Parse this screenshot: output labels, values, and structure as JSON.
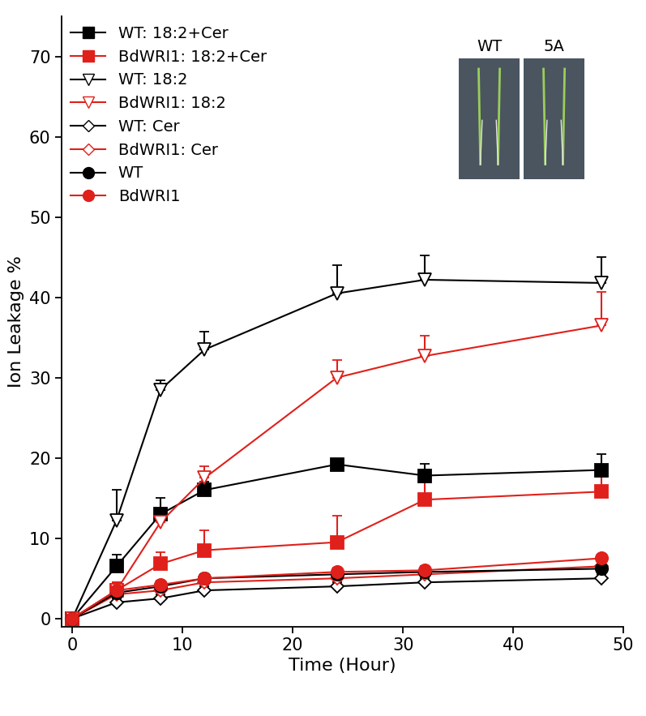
{
  "chart_data": {
    "type": "line",
    "x_label": "Time (Hour)",
    "y_label": "Ion Leakage %",
    "x": [
      0,
      4,
      8,
      12,
      24,
      32,
      48
    ],
    "xlim": [
      -1,
      50
    ],
    "xticks": [
      0,
      10,
      20,
      30,
      40,
      50
    ],
    "ylim": [
      -1,
      75
    ],
    "yticks": [
      0,
      10,
      20,
      30,
      40,
      50,
      60,
      70
    ],
    "legend": "upper left",
    "annotations": [
      "WT",
      "5A"
    ],
    "series": [
      {
        "name": "WT: 18:2+Cer",
        "color": "#000000",
        "marker": "square",
        "values": [
          0,
          6.5,
          13,
          16,
          19.2,
          17.8,
          18.5
        ],
        "errors": [
          0,
          1.5,
          2,
          1,
          0.5,
          1.5,
          2
        ]
      },
      {
        "name": "BdWRI1: 18:2+Cer",
        "color": "#e0201b",
        "marker": "square",
        "values": [
          0,
          3.5,
          6.8,
          8.5,
          9.5,
          14.8,
          15.8
        ],
        "errors": [
          0,
          1,
          1.5,
          2.5,
          3.3,
          3.8,
          3.2
        ]
      },
      {
        "name": "WT: 18:2",
        "color": "#000000",
        "marker": "triangle_open",
        "values": [
          0,
          12.2,
          28.5,
          33.5,
          40.5,
          42.2,
          41.8
        ],
        "errors": [
          0,
          3.8,
          1.2,
          2.2,
          3.5,
          3,
          3.2
        ]
      },
      {
        "name": "BdWRI1: 18:2",
        "color": "#e0201b",
        "marker": "triangle_open",
        "values": [
          0,
          3.5,
          12,
          17.5,
          30,
          32.7,
          36.5
        ],
        "errors": [
          0,
          1,
          1,
          1.5,
          2.2,
          2.5,
          4.2
        ]
      },
      {
        "name": "WT: Cer",
        "color": "#000000",
        "marker": "diamond_open",
        "values": [
          0,
          2,
          2.5,
          3.5,
          4,
          4.5,
          5
        ],
        "errors": [
          0,
          0.5,
          0.5,
          0.5,
          0.5,
          0.5,
          0.5
        ]
      },
      {
        "name": "BdWRI1: Cer",
        "color": "#e0201b",
        "marker": "diamond_open",
        "values": [
          0,
          3,
          3.5,
          4.5,
          5,
          5.5,
          6.5
        ],
        "errors": [
          0,
          0.5,
          0.5,
          0.5,
          0.5,
          0.5,
          0.5
        ]
      },
      {
        "name": "WT",
        "color": "#000000",
        "marker": "circle",
        "values": [
          0,
          3.2,
          4,
          5,
          5.5,
          5.8,
          6.2
        ],
        "errors": [
          0,
          0.5,
          0.5,
          0.5,
          0.5,
          0.5,
          0.5
        ]
      },
      {
        "name": "BdWRI1",
        "color": "#e0201b",
        "marker": "circle",
        "values": [
          0,
          3.5,
          4.2,
          5,
          5.8,
          6,
          7.5
        ],
        "errors": [
          0,
          0.5,
          0.5,
          0.5,
          0.5,
          0.5,
          0.5
        ]
      }
    ]
  }
}
